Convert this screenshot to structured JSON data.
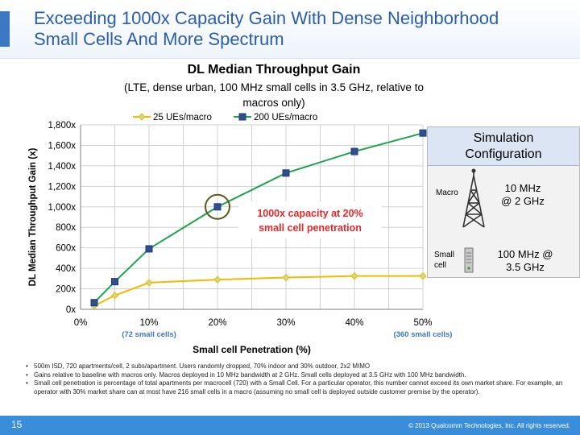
{
  "slide": {
    "title_line1": "Exceeding 1000x Capacity Gain With Dense Neighborhood",
    "title_line2": "Small Cells And More Spectrum",
    "page_number": "15",
    "copyright": "© 2013 Qualcomm Technologies, Inc. All rights reserved.",
    "accent_color": "#2a5fa8"
  },
  "chart_data": {
    "type": "line",
    "title": "DL Median Throughput Gain",
    "subtitle_line1": "(LTE, dense urban, 100 MHz small cells in 3.5 GHz, relative to",
    "subtitle_line2": "macros only)",
    "xlabel": "Small cell Penetration (%)",
    "ylabel": "DL Median Throughput Gain (x)",
    "xlim": [
      0,
      50
    ],
    "ylim": [
      0,
      1800
    ],
    "x_ticks": [
      0,
      10,
      20,
      30,
      40,
      50
    ],
    "x_tick_labels": [
      "0%",
      "10%",
      "20%",
      "30%",
      "40%",
      "50%"
    ],
    "y_ticks": [
      0,
      200,
      400,
      600,
      800,
      1000,
      1200,
      1400,
      1600,
      1800
    ],
    "y_tick_labels": [
      "0x",
      "200x",
      "400x",
      "600x",
      "800x",
      "1,000x",
      "1,200x",
      "1,400x",
      "1,600x",
      "1,800x"
    ],
    "grid": true,
    "legend_position": "top",
    "series": [
      {
        "name": "25 UEs/macro",
        "color": "#f5b800",
        "marker": "diamond",
        "x": [
          2,
          5,
          10,
          20,
          30,
          40,
          50
        ],
        "y": [
          35,
          135,
          260,
          290,
          310,
          325,
          325
        ]
      },
      {
        "name": "200 UEs/macro",
        "color": "#1aa64a",
        "marker": "square",
        "x": [
          2,
          5,
          10,
          20,
          30,
          40,
          50
        ],
        "y": [
          65,
          270,
          590,
          1000,
          1330,
          1540,
          1720
        ]
      }
    ],
    "tick_notes": [
      {
        "x": 10,
        "text": "(72 small cells)"
      },
      {
        "x": 50,
        "text": "(360 small cells)"
      }
    ],
    "tick_note_color": "#3b78c4",
    "annotation": {
      "text_line1": "1000x capacity at 20%",
      "text_line2": "small cell penetration",
      "color": "#e8262a",
      "highlight_x": 20,
      "highlight_y": 1000,
      "highlight_color": "#5a5a1e"
    }
  },
  "simulation": {
    "heading_line1": "Simulation",
    "heading_line2": "Configuration",
    "macro_label": "Macro",
    "macro_value_line1": "10 MHz",
    "macro_value_line2": "@ 2 GHz",
    "small_label_line1": "Small",
    "small_label_line2": "cell",
    "small_value_line1": "100 MHz @",
    "small_value_line2": "3.5 GHz",
    "macro_icon": "cell-tower-icon",
    "small_icon": "small-cell-icon"
  },
  "notes": [
    "500m ISD, 720 apartments/cell, 2 subs/apartment. Users randomly dropped, 70% indoor and 30% outdoor, 2x2 MIMO",
    "Gains relative to baseline with macros only. Macros deployed in 10 MHz bandwidth at 2 GHz. Small cells deployed at 3.5 GHz with 100 MHz bandwidth.",
    "Small cell penetration is percentage of  total apartments per macrocell (720) with a Small Cell. For a particular operator, this number cannot exceed its own market share. For example, an operator with 30% market share can at most have 216 small cells in a macro (assuming no small cell is deployed outside customer premise by the operator)."
  ]
}
